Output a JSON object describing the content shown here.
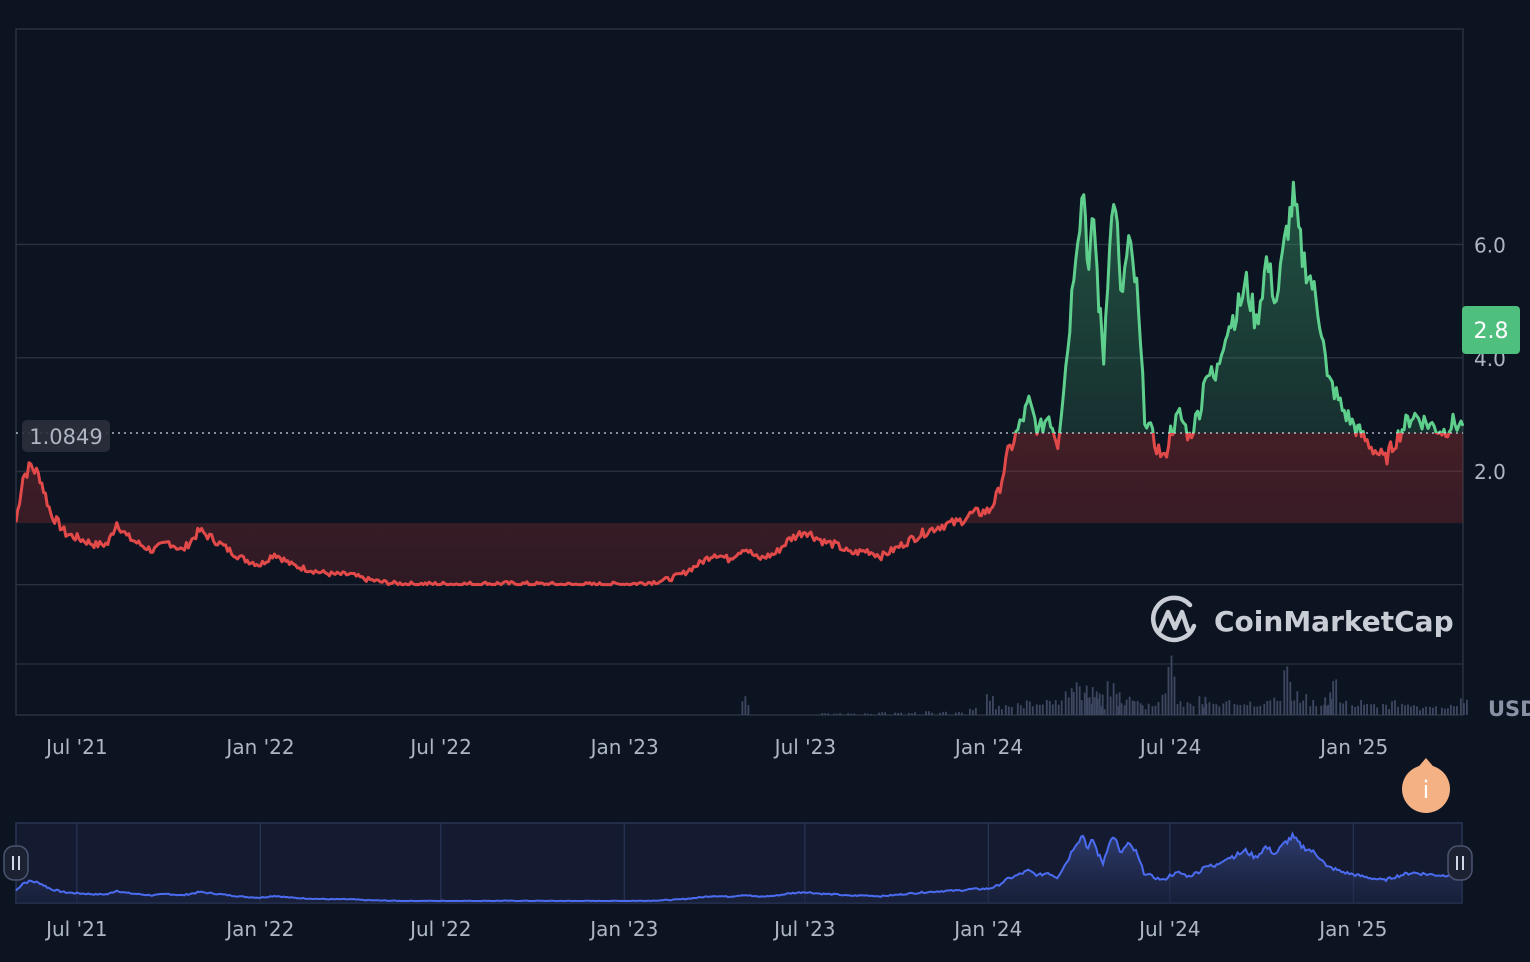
{
  "chart_data": {
    "type": "area",
    "baseline_label": "1.0849",
    "baseline": 1.0849,
    "current_price_label": "2.8",
    "currency_label": "USD",
    "watermark": "CoinMarketCap",
    "y_ticks": [
      "6.0",
      "4.0",
      "2.0"
    ],
    "y_tick_values": [
      6,
      4,
      2
    ],
    "ylim": [
      -2.3,
      9.8
    ],
    "x_labels": [
      "Jul '21",
      "Jan '22",
      "Jul '22",
      "Jan '23",
      "Jul '23",
      "Jan '24",
      "Jul '24",
      "Jan '25"
    ],
    "x_label_dates": [
      "2021-07-01",
      "2022-01-01",
      "2022-07-01",
      "2023-01-01",
      "2023-07-01",
      "2024-01-01",
      "2024-07-01",
      "2025-01-01"
    ],
    "xlim": [
      "2021-05-01",
      "2025-04-20"
    ],
    "colors": {
      "background": "#0d1421",
      "up": "#5fcf8d",
      "down": "#e24a4a",
      "navigator_line": "#4b6cf0",
      "current_badge": "#4fbf7e",
      "info_button": "#f4b183"
    },
    "info_icon": "info-icon",
    "x": [
      "2021-05-01",
      "2021-05-08",
      "2021-05-16",
      "2021-05-25",
      "2021-06-05",
      "2021-06-20",
      "2021-07-05",
      "2021-07-20",
      "2021-08-01",
      "2021-08-10",
      "2021-08-20",
      "2021-09-01",
      "2021-09-15",
      "2021-10-01",
      "2021-10-15",
      "2021-11-01",
      "2021-11-15",
      "2021-12-01",
      "2021-12-15",
      "2022-01-01",
      "2022-01-15",
      "2022-02-01",
      "2022-02-15",
      "2022-03-01",
      "2022-03-15",
      "2022-04-01",
      "2022-04-15",
      "2022-05-01",
      "2022-05-15",
      "2022-06-01",
      "2022-06-15",
      "2022-07-01",
      "2022-08-01",
      "2022-09-01",
      "2022-10-01",
      "2022-11-01",
      "2022-12-01",
      "2023-01-01",
      "2023-01-15",
      "2023-02-01",
      "2023-02-15",
      "2023-03-01",
      "2023-03-15",
      "2023-04-01",
      "2023-04-15",
      "2023-05-01",
      "2023-05-15",
      "2023-06-01",
      "2023-06-15",
      "2023-07-01",
      "2023-07-10",
      "2023-07-20",
      "2023-08-01",
      "2023-08-15",
      "2023-09-01",
      "2023-09-15",
      "2023-10-01",
      "2023-10-15",
      "2023-11-01",
      "2023-11-15",
      "2023-12-01",
      "2023-12-15",
      "2024-01-01",
      "2024-01-10",
      "2024-01-20",
      "2024-02-01",
      "2024-02-10",
      "2024-02-20",
      "2024-03-01",
      "2024-03-10",
      "2024-03-20",
      "2024-03-28",
      "2024-04-05",
      "2024-04-10",
      "2024-04-15",
      "2024-04-20",
      "2024-04-25",
      "2024-05-01",
      "2024-05-07",
      "2024-05-12",
      "2024-05-20",
      "2024-05-28",
      "2024-06-05",
      "2024-06-15",
      "2024-06-25",
      "2024-07-01",
      "2024-07-10",
      "2024-07-20",
      "2024-08-01",
      "2024-08-05",
      "2024-08-15",
      "2024-08-25",
      "2024-09-05",
      "2024-09-15",
      "2024-09-25",
      "2024-10-05",
      "2024-10-15",
      "2024-10-25",
      "2024-11-01",
      "2024-11-10",
      "2024-11-20",
      "2024-12-01",
      "2024-12-05",
      "2024-12-10",
      "2024-12-20",
      "2025-01-01",
      "2025-01-10",
      "2025-01-20",
      "2025-02-01",
      "2025-02-10",
      "2025-02-20",
      "2025-03-01",
      "2025-03-10",
      "2025-03-20",
      "2025-04-01",
      "2025-04-10",
      "2025-04-20"
    ],
    "values": [
      1.1,
      1.9,
      2.1,
      1.9,
      1.25,
      0.9,
      0.8,
      0.7,
      0.72,
      1.1,
      0.85,
      0.72,
      0.6,
      0.75,
      0.6,
      0.95,
      0.8,
      0.6,
      0.45,
      0.35,
      0.55,
      0.35,
      0.28,
      0.22,
      0.18,
      0.18,
      0.1,
      0.05,
      0.02,
      0.01,
      0.01,
      0.01,
      0.01,
      0.02,
      0.01,
      0.0,
      0.0,
      0.01,
      0.02,
      0.05,
      0.1,
      0.2,
      0.35,
      0.55,
      0.45,
      0.65,
      0.45,
      0.55,
      0.8,
      0.95,
      0.85,
      0.75,
      0.7,
      0.55,
      0.6,
      0.5,
      0.65,
      0.8,
      0.95,
      1.05,
      1.1,
      1.25,
      1.3,
      1.6,
      2.3,
      2.8,
      3.2,
      2.7,
      3.0,
      2.5,
      4.2,
      6.0,
      7.0,
      5.5,
      6.5,
      5.0,
      4.0,
      6.2,
      6.8,
      5.0,
      6.0,
      5.2,
      3.0,
      2.5,
      2.2,
      2.7,
      3.0,
      2.6,
      3.2,
      3.8,
      3.6,
      4.5,
      4.8,
      5.3,
      4.6,
      5.7,
      5.0,
      6.2,
      6.8,
      5.8,
      5.3,
      4.4,
      3.6,
      3.5,
      3.1,
      2.8,
      2.6,
      2.4,
      2.2,
      2.5,
      2.8,
      3.0,
      2.9,
      2.8,
      2.7,
      2.85,
      2.8
    ],
    "volume": [
      0,
      0,
      0,
      0,
      0,
      0,
      0,
      0,
      0,
      0,
      0,
      0,
      0,
      0,
      0,
      0,
      0,
      0,
      0,
      0,
      0,
      0,
      0,
      0,
      0,
      0,
      0,
      0,
      0,
      0,
      0,
      0,
      0,
      0,
      0,
      0,
      0,
      0,
      0,
      0,
      0,
      0,
      0,
      0,
      0,
      0.5,
      0,
      0,
      0,
      0,
      0,
      0.05,
      0.05,
      0.05,
      0.05,
      0.08,
      0.08,
      0.08,
      0.1,
      0.1,
      0.12,
      0.2,
      0.6,
      0.25,
      0.3,
      0.35,
      0.4,
      0.3,
      0.45,
      0.5,
      0.8,
      1.0,
      0.6,
      0.9,
      0.5,
      0.7,
      0.3,
      0.9,
      0.6,
      0.4,
      0.5,
      0.4,
      0.3,
      0.35,
      0.6,
      1.6,
      0.4,
      0.4,
      0.5,
      0.35,
      0.3,
      0.4,
      0.35,
      0.4,
      0.3,
      0.4,
      0.5,
      1.5,
      0.7,
      0.6,
      0.4,
      0.3,
      0.5,
      1.0,
      0.4,
      0.3,
      0.4,
      0.35,
      0.3,
      0.4,
      0.3,
      0.3,
      0.25,
      0.3,
      0.25,
      0.3,
      0.5
    ]
  }
}
